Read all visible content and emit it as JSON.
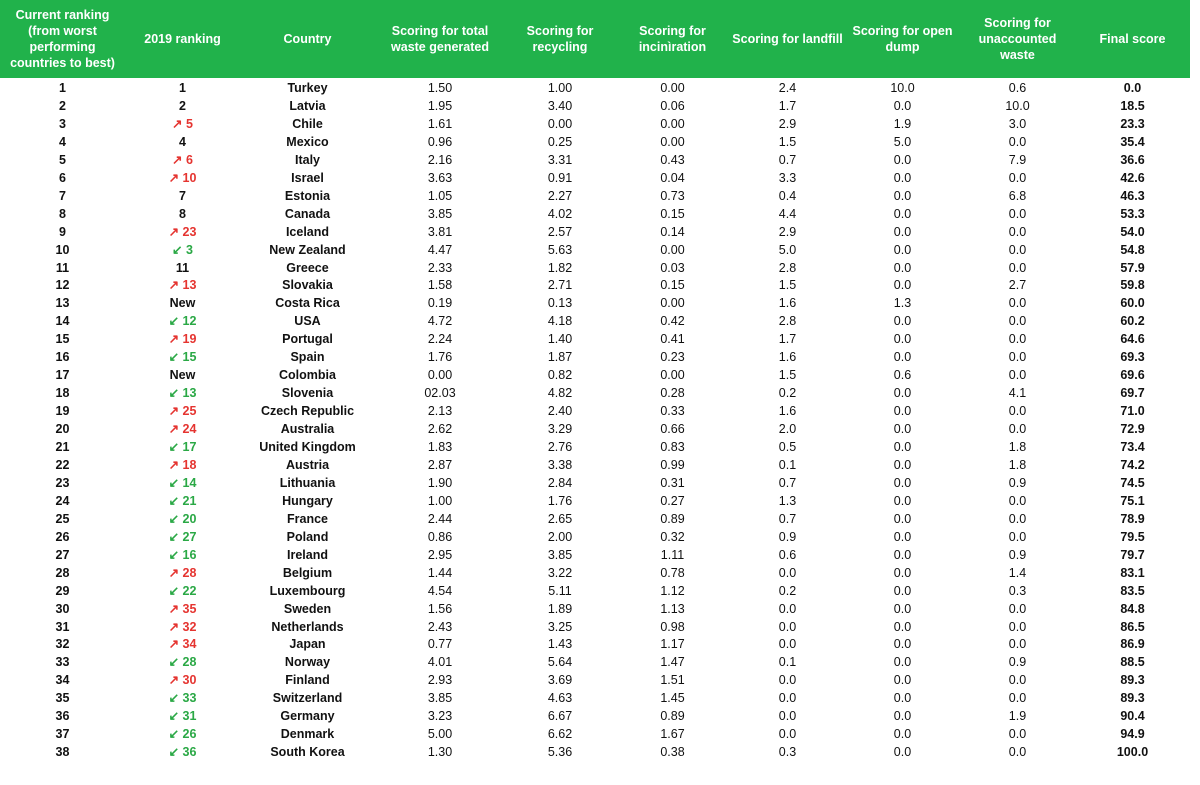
{
  "table": {
    "columns": [
      "Current ranking (from worst performing countries to best)",
      "2019 ranking",
      "Country",
      "Scoring for total waste generated",
      "Scoring for recycling",
      "Scoring for incinìration",
      "Scoring for landfill",
      "Scoring for open dump",
      "Scoring for unaccounted waste",
      "Final score"
    ],
    "rows": [
      [
        "1",
        "1",
        "Turkey",
        "1.50",
        "1.00",
        "0.00",
        "2.4",
        "10.0",
        "0.6",
        "0.0"
      ],
      [
        "2",
        "2",
        "Latvia",
        "1.95",
        "3.40",
        "0.06",
        "1.7",
        "0.0",
        "10.0",
        "18.5"
      ],
      [
        "3",
        "↗ 5",
        "Chile",
        "1.61",
        "0.00",
        "0.00",
        "2.9",
        "1.9",
        "3.0",
        "23.3"
      ],
      [
        "4",
        "4",
        "Mexico",
        "0.96",
        "0.25",
        "0.00",
        "1.5",
        "5.0",
        "0.0",
        "35.4"
      ],
      [
        "5",
        "↗ 6",
        "Italy",
        "2.16",
        "3.31",
        "0.43",
        "0.7",
        "0.0",
        "7.9",
        "36.6"
      ],
      [
        "6",
        "↗ 10",
        "Israel",
        "3.63",
        "0.91",
        "0.04",
        "3.3",
        "0.0",
        "0.0",
        "42.6"
      ],
      [
        "7",
        "7",
        "Estonia",
        "1.05",
        "2.27",
        "0.73",
        "0.4",
        "0.0",
        "6.8",
        "46.3"
      ],
      [
        "8",
        "8",
        "Canada",
        "3.85",
        "4.02",
        "0.15",
        "4.4",
        "0.0",
        "0.0",
        "53.3"
      ],
      [
        "9",
        "↗ 23",
        "Iceland",
        "3.81",
        "2.57",
        "0.14",
        "2.9",
        "0.0",
        "0.0",
        "54.0"
      ],
      [
        "10",
        "↙ 3",
        "New Zealand",
        "4.47",
        "5.63",
        "0.00",
        "5.0",
        "0.0",
        "0.0",
        "54.8"
      ],
      [
        "11",
        "11",
        "Greece",
        "2.33",
        "1.82",
        "0.03",
        "2.8",
        "0.0",
        "0.0",
        "57.9"
      ],
      [
        "12",
        "↗ 13",
        "Slovakia",
        "1.58",
        "2.71",
        "0.15",
        "1.5",
        "0.0",
        "2.7",
        "59.8"
      ],
      [
        "13",
        "New",
        "Costa Rica",
        "0.19",
        "0.13",
        "0.00",
        "1.6",
        "1.3",
        "0.0",
        "60.0"
      ],
      [
        "14",
        "↙ 12",
        "USA",
        "4.72",
        "4.18",
        "0.42",
        "2.8",
        "0.0",
        "0.0",
        "60.2"
      ],
      [
        "15",
        "↗ 19",
        "Portugal",
        "2.24",
        "1.40",
        "0.41",
        "1.7",
        "0.0",
        "0.0",
        "64.6"
      ],
      [
        "16",
        "↙ 15",
        "Spain",
        "1.76",
        "1.87",
        "0.23",
        "1.6",
        "0.0",
        "0.0",
        "69.3"
      ],
      [
        "17",
        "New",
        "Colombia",
        "0.00",
        "0.82",
        "0.00",
        "1.5",
        "0.6",
        "0.0",
        "69.6"
      ],
      [
        "18",
        "↙ 13",
        "Slovenia",
        "02.03",
        "4.82",
        "0.28",
        "0.2",
        "0.0",
        "4.1",
        "69.7"
      ],
      [
        "19",
        "↗ 25",
        "Czech Republic",
        "2.13",
        "2.40",
        "0.33",
        "1.6",
        "0.0",
        "0.0",
        "71.0"
      ],
      [
        "20",
        "↗ 24",
        "Australia",
        "2.62",
        "3.29",
        "0.66",
        "2.0",
        "0.0",
        "0.0",
        "72.9"
      ],
      [
        "21",
        "↙ 17",
        "United Kingdom",
        "1.83",
        "2.76",
        "0.83",
        "0.5",
        "0.0",
        "1.8",
        "73.4"
      ],
      [
        "22",
        "↗ 18",
        "Austria",
        "2.87",
        "3.38",
        "0.99",
        "0.1",
        "0.0",
        "1.8",
        "74.2"
      ],
      [
        "23",
        "↙ 14",
        "Lithuania",
        "1.90",
        "2.84",
        "0.31",
        "0.7",
        "0.0",
        "0.9",
        "74.5"
      ],
      [
        "24",
        "↙ 21",
        "Hungary",
        "1.00",
        "1.76",
        "0.27",
        "1.3",
        "0.0",
        "0.0",
        "75.1"
      ],
      [
        "25",
        "↙ 20",
        "France",
        "2.44",
        "2.65",
        "0.89",
        "0.7",
        "0.0",
        "0.0",
        "78.9"
      ],
      [
        "26",
        "↙ 27",
        "Poland",
        "0.86",
        "2.00",
        "0.32",
        "0.9",
        "0.0",
        "0.0",
        "79.5"
      ],
      [
        "27",
        "↙ 16",
        "Ireland",
        "2.95",
        "3.85",
        "1.11",
        "0.6",
        "0.0",
        "0.9",
        "79.7"
      ],
      [
        "28",
        "↗ 28",
        "Belgium",
        "1.44",
        "3.22",
        "0.78",
        "0.0",
        "0.0",
        "1.4",
        "83.1"
      ],
      [
        "29",
        "↙ 22",
        "Luxembourg",
        "4.54",
        "5.11",
        "1.12",
        "0.2",
        "0.0",
        "0.3",
        "83.5"
      ],
      [
        "30",
        "↗ 35",
        "Sweden",
        "1.56",
        "1.89",
        "1.13",
        "0.0",
        "0.0",
        "0.0",
        "84.8"
      ],
      [
        "31",
        "↗ 32",
        "Netherlands",
        "2.43",
        "3.25",
        "0.98",
        "0.0",
        "0.0",
        "0.0",
        "86.5"
      ],
      [
        "32",
        "↗ 34",
        "Japan",
        "0.77",
        "1.43",
        "1.17",
        "0.0",
        "0.0",
        "0.0",
        "86.9"
      ],
      [
        "33",
        "↙ 28",
        "Norway",
        "4.01",
        "5.64",
        "1.47",
        "0.1",
        "0.0",
        "0.9",
        "88.5"
      ],
      [
        "34",
        "↗ 30",
        "Finland",
        "2.93",
        "3.69",
        "1.51",
        "0.0",
        "0.0",
        "0.0",
        "89.3"
      ],
      [
        "35",
        "↙ 33",
        "Switzerland",
        "3.85",
        "4.63",
        "1.45",
        "0.0",
        "0.0",
        "0.0",
        "89.3"
      ],
      [
        "36",
        "↙ 31",
        "Germany",
        "3.23",
        "6.67",
        "0.89",
        "0.0",
        "0.0",
        "1.9",
        "90.4"
      ],
      [
        "37",
        "↙ 26",
        "Denmark",
        "5.00",
        "6.62",
        "1.67",
        "0.0",
        "0.0",
        "0.0",
        "94.9"
      ],
      [
        "38",
        "↙ 36",
        "South Korea",
        "1.30",
        "5.36",
        "0.38",
        "0.3",
        "0.0",
        "0.0",
        "100.0"
      ]
    ]
  }
}
